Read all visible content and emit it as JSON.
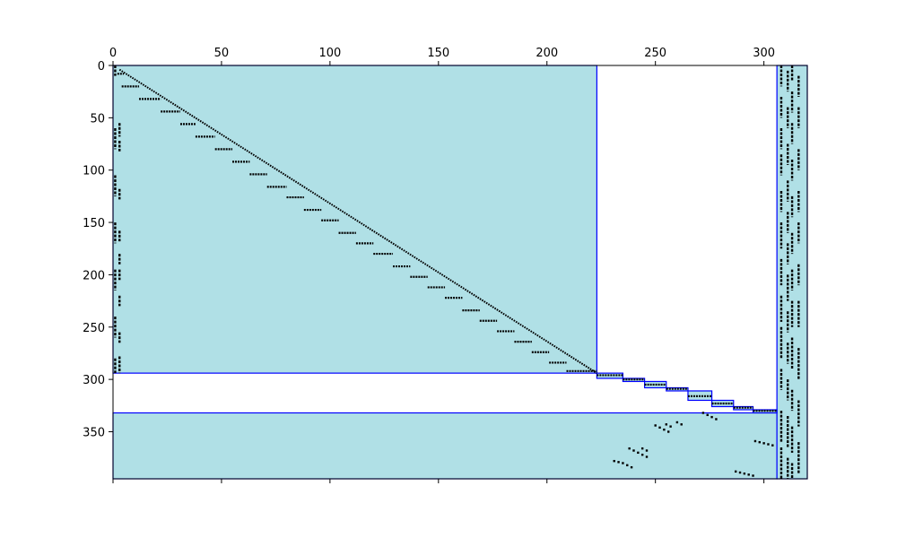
{
  "chart_data": {
    "type": "heatmap",
    "subtype": "sparsity-pattern",
    "title": "",
    "xlabel": "",
    "ylabel": "",
    "xlim": [
      0,
      320
    ],
    "ylim": [
      0,
      395
    ],
    "y_inverted": true,
    "x_axis_position": "top",
    "x_ticks": [
      0,
      50,
      100,
      150,
      200,
      250,
      300
    ],
    "y_ticks": [
      0,
      50,
      100,
      150,
      200,
      250,
      300,
      350
    ],
    "grid": false,
    "legend": "none",
    "block_fill_color": "#b0e0e6",
    "block_edge_color": "#0000ff",
    "marker_color": "#000000",
    "blocks": [
      {
        "x": [
          0,
          223
        ],
        "y": [
          0,
          294
        ]
      },
      {
        "x": [
          0,
          306
        ],
        "y": [
          332,
          395
        ]
      },
      {
        "x": [
          306,
          320
        ],
        "y": [
          0,
          395
        ]
      },
      {
        "x": [
          223,
          235
        ],
        "y": [
          294,
          299
        ]
      },
      {
        "x": [
          235,
          245
        ],
        "y": [
          299,
          302
        ]
      },
      {
        "x": [
          245,
          255
        ],
        "y": [
          302,
          308
        ]
      },
      {
        "x": [
          255,
          265
        ],
        "y": [
          308,
          311
        ]
      },
      {
        "x": [
          265,
          276
        ],
        "y": [
          311,
          320
        ]
      },
      {
        "x": [
          276,
          286
        ],
        "y": [
          320,
          326
        ]
      },
      {
        "x": [
          286,
          295
        ],
        "y": [
          326,
          329
        ]
      },
      {
        "x": [
          295,
          306
        ],
        "y": [
          329,
          332
        ]
      }
    ],
    "diagonal_steps": [
      {
        "x0": 2,
        "x1": 5,
        "y": 8
      },
      {
        "x0": 4,
        "x1": 12,
        "y": 20
      },
      {
        "x0": 12,
        "x1": 22,
        "y": 32
      },
      {
        "x0": 22,
        "x1": 31,
        "y": 44
      },
      {
        "x0": 31,
        "x1": 38,
        "y": 56
      },
      {
        "x0": 38,
        "x1": 47,
        "y": 68
      },
      {
        "x0": 47,
        "x1": 55,
        "y": 80
      },
      {
        "x0": 55,
        "x1": 63,
        "y": 92
      },
      {
        "x0": 63,
        "x1": 71,
        "y": 104
      },
      {
        "x0": 71,
        "x1": 80,
        "y": 116
      },
      {
        "x0": 80,
        "x1": 88,
        "y": 126
      },
      {
        "x0": 88,
        "x1": 96,
        "y": 138
      },
      {
        "x0": 96,
        "x1": 104,
        "y": 148
      },
      {
        "x0": 104,
        "x1": 112,
        "y": 160
      },
      {
        "x0": 112,
        "x1": 120,
        "y": 170
      },
      {
        "x0": 120,
        "x1": 129,
        "y": 180
      },
      {
        "x0": 129,
        "x1": 137,
        "y": 192
      },
      {
        "x0": 137,
        "x1": 145,
        "y": 202
      },
      {
        "x0": 145,
        "x1": 153,
        "y": 212
      },
      {
        "x0": 153,
        "x1": 161,
        "y": 222
      },
      {
        "x0": 161,
        "x1": 169,
        "y": 234
      },
      {
        "x0": 169,
        "x1": 177,
        "y": 244
      },
      {
        "x0": 177,
        "x1": 185,
        "y": 254
      },
      {
        "x0": 185,
        "x1": 193,
        "y": 264
      },
      {
        "x0": 193,
        "x1": 201,
        "y": 274
      },
      {
        "x0": 201,
        "x1": 209,
        "y": 284
      },
      {
        "x0": 209,
        "x1": 223,
        "y": 292
      }
    ],
    "diagonal_line": {
      "x": [
        3,
        223
      ],
      "y": [
        4,
        294
      ]
    },
    "corner_block_steps": [
      {
        "x0": 223,
        "x1": 235,
        "y": 296
      },
      {
        "x0": 235,
        "x1": 245,
        "y": 300
      },
      {
        "x0": 245,
        "x1": 255,
        "y": 305
      },
      {
        "x0": 255,
        "x1": 265,
        "y": 309
      },
      {
        "x0": 265,
        "x1": 276,
        "y": 316
      },
      {
        "x0": 276,
        "x1": 286,
        "y": 323
      },
      {
        "x0": 286,
        "x1": 295,
        "y": 327
      },
      {
        "x0": 295,
        "x1": 306,
        "y": 330
      }
    ],
    "left_columns": [
      {
        "x": 1,
        "y_ranges": [
          [
            0,
            10
          ],
          [
            60,
            80
          ],
          [
            105,
            125
          ],
          [
            150,
            170
          ],
          [
            195,
            215
          ],
          [
            240,
            260
          ],
          [
            280,
            294
          ]
        ]
      },
      {
        "x": 3,
        "y_ranges": [
          [
            55,
            68
          ],
          [
            72,
            82
          ],
          [
            118,
            128
          ],
          [
            158,
            168
          ],
          [
            180,
            190
          ],
          [
            195,
            205
          ],
          [
            220,
            230
          ],
          [
            255,
            265
          ],
          [
            278,
            294
          ]
        ]
      }
    ],
    "right_columns": [
      {
        "x": 308,
        "y_ranges": [
          [
            0,
            20
          ],
          [
            30,
            50
          ],
          [
            60,
            80
          ],
          [
            85,
            105
          ],
          [
            120,
            140
          ],
          [
            150,
            175
          ],
          [
            185,
            210
          ],
          [
            220,
            245
          ],
          [
            250,
            280
          ],
          [
            290,
            310
          ],
          [
            330,
            360
          ],
          [
            365,
            395
          ]
        ]
      },
      {
        "x": 311,
        "y_ranges": [
          [
            5,
            25
          ],
          [
            40,
            60
          ],
          [
            75,
            95
          ],
          [
            110,
            130
          ],
          [
            140,
            160
          ],
          [
            170,
            190
          ],
          [
            200,
            225
          ],
          [
            235,
            255
          ],
          [
            265,
            285
          ],
          [
            300,
            320
          ],
          [
            335,
            365
          ],
          [
            375,
            395
          ]
        ]
      },
      {
        "x": 313,
        "y_ranges": [
          [
            0,
            15
          ],
          [
            25,
            45
          ],
          [
            55,
            75
          ],
          [
            90,
            110
          ],
          [
            125,
            145
          ],
          [
            160,
            180
          ],
          [
            195,
            215
          ],
          [
            225,
            250
          ],
          [
            260,
            290
          ],
          [
            310,
            330
          ],
          [
            345,
            370
          ],
          [
            380,
            395
          ]
        ]
      },
      {
        "x": 316,
        "y_ranges": [
          [
            10,
            30
          ],
          [
            40,
            60
          ],
          [
            80,
            100
          ],
          [
            120,
            140
          ],
          [
            150,
            170
          ],
          [
            190,
            210
          ],
          [
            225,
            250
          ],
          [
            270,
            300
          ],
          [
            320,
            345
          ],
          [
            360,
            390
          ]
        ]
      }
    ],
    "bottom_scatter": [
      {
        "x": 231,
        "y": 378
      },
      {
        "x": 233,
        "y": 379
      },
      {
        "x": 235,
        "y": 380
      },
      {
        "x": 237,
        "y": 382
      },
      {
        "x": 239,
        "y": 384
      },
      {
        "x": 238,
        "y": 366
      },
      {
        "x": 240,
        "y": 368
      },
      {
        "x": 242,
        "y": 370
      },
      {
        "x": 244,
        "y": 372
      },
      {
        "x": 246,
        "y": 374
      },
      {
        "x": 244,
        "y": 366
      },
      {
        "x": 246,
        "y": 368
      },
      {
        "x": 250,
        "y": 344
      },
      {
        "x": 252,
        "y": 346
      },
      {
        "x": 254,
        "y": 348
      },
      {
        "x": 256,
        "y": 350
      },
      {
        "x": 255,
        "y": 343
      },
      {
        "x": 257,
        "y": 345
      },
      {
        "x": 260,
        "y": 341
      },
      {
        "x": 262,
        "y": 343
      },
      {
        "x": 272,
        "y": 332
      },
      {
        "x": 274,
        "y": 334
      },
      {
        "x": 276,
        "y": 336
      },
      {
        "x": 278,
        "y": 338
      },
      {
        "x": 287,
        "y": 388
      },
      {
        "x": 289,
        "y": 389
      },
      {
        "x": 291,
        "y": 390
      },
      {
        "x": 293,
        "y": 391
      },
      {
        "x": 295,
        "y": 392
      },
      {
        "x": 296,
        "y": 359
      },
      {
        "x": 298,
        "y": 360
      },
      {
        "x": 300,
        "y": 361
      },
      {
        "x": 302,
        "y": 362
      },
      {
        "x": 304,
        "y": 363
      }
    ]
  }
}
